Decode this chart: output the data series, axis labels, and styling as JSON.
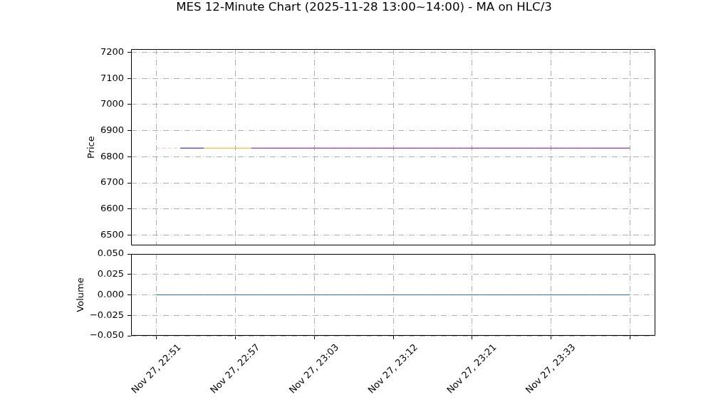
{
  "chart_data": [
    {
      "type": "line",
      "title": "MES 12-Minute Chart (2025-11-28 13:00~14:00) - MA on HLC/3",
      "ylabel": "Price",
      "categories": [
        null,
        null,
        null,
        null,
        null,
        null,
        null,
        null,
        null,
        null,
        null,
        null,
        null,
        null,
        null,
        null,
        null,
        null,
        null,
        null,
        null,
        null,
        null,
        null,
        null,
        null,
        null,
        null,
        null,
        null,
        null,
        null,
        null,
        null,
        null,
        null,
        null,
        null,
        null,
        null,
        null,
        null,
        null,
        null,
        null,
        null,
        null,
        null,
        null,
        null,
        null,
        null,
        null,
        null,
        null,
        null,
        null,
        null,
        null,
        null,
        null
      ],
      "series": [
        {
          "color": "#ffb6c1",
          "line_style": "dashed",
          "values": [
            6833,
            6833,
            6833,
            6833,
            null,
            null,
            null,
            null,
            null,
            null,
            null,
            null,
            null,
            null,
            null,
            null,
            null,
            null,
            null,
            null,
            null,
            null,
            null,
            null,
            null,
            null,
            null,
            null,
            null,
            null,
            null,
            null,
            null,
            null,
            null,
            null,
            null,
            null,
            null,
            null,
            null,
            null,
            null,
            null,
            null,
            null,
            null,
            null,
            null,
            null,
            null,
            null,
            null,
            null,
            null,
            null,
            null,
            null,
            null,
            null,
            null
          ]
        },
        {
          "color": "#0000ff",
          "values": [
            null,
            null,
            null,
            6833,
            6833,
            6833,
            6833,
            null,
            null,
            null,
            null,
            null,
            null,
            null,
            null,
            null,
            null,
            null,
            null,
            null,
            null,
            null,
            null,
            null,
            null,
            null,
            null,
            null,
            null,
            null,
            null,
            null,
            null,
            null,
            null,
            null,
            null,
            null,
            null,
            null,
            null,
            null,
            null,
            null,
            null,
            null,
            null,
            null,
            null,
            null,
            null,
            null,
            null,
            null,
            null,
            null,
            null,
            null,
            null,
            null,
            null
          ]
        },
        {
          "color": "#ffa500",
          "values": [
            null,
            null,
            null,
            null,
            null,
            null,
            6833,
            6833,
            6833,
            6833,
            6833,
            6833,
            6833,
            null,
            null,
            null,
            null,
            null,
            null,
            null,
            null,
            null,
            null,
            null,
            null,
            null,
            null,
            null,
            null,
            null,
            null,
            null,
            null,
            null,
            null,
            null,
            null,
            null,
            null,
            null,
            null,
            null,
            null,
            null,
            null,
            null,
            null,
            null,
            null,
            null,
            null,
            null,
            null,
            null,
            null,
            null,
            null,
            null,
            null,
            null,
            null
          ]
        },
        {
          "color": "#800080",
          "values": [
            null,
            null,
            null,
            null,
            null,
            null,
            null,
            null,
            null,
            null,
            null,
            null,
            6833,
            6833,
            6833,
            6833,
            6833,
            6833,
            6833,
            6833,
            6833,
            6833,
            6833,
            6833,
            6833,
            6833,
            6833,
            6833,
            6833,
            6833,
            6833,
            6833,
            6833,
            6833,
            6833,
            6833,
            6833,
            6833,
            6833,
            6833,
            6833,
            6833,
            6833,
            6833,
            6833,
            6833,
            6833,
            6833,
            6833,
            6833,
            6833,
            6833,
            6833,
            6833,
            6833,
            6833,
            6833,
            6833,
            6833,
            6833,
            6833
          ]
        }
      ],
      "ylim": [
        6460,
        7212
      ],
      "yticks": [
        6500,
        6600,
        6700,
        6800,
        6900,
        7000,
        7100,
        7200
      ],
      "grid": true,
      "tick_labels": "y",
      "marker": "none",
      "line_style": "solid"
    },
    {
      "type": "line",
      "ylabel": "Volume",
      "categories": [
        "Nov 27, 22:51",
        null,
        null,
        null,
        null,
        null,
        null,
        null,
        null,
        null,
        "Nov 27, 22:57",
        null,
        null,
        null,
        null,
        null,
        null,
        null,
        null,
        null,
        "Nov 27, 23:03",
        null,
        null,
        null,
        null,
        null,
        null,
        null,
        null,
        null,
        "Nov 27, 23:12",
        null,
        null,
        null,
        null,
        null,
        null,
        null,
        null,
        null,
        "Nov 27, 23:21",
        null,
        null,
        null,
        null,
        null,
        null,
        null,
        null,
        null,
        "Nov 27, 23:33",
        null,
        null,
        null,
        null,
        null,
        null,
        null,
        null,
        null,
        null
      ],
      "series": [
        {
          "color": "#1f77b4",
          "values": [
            0,
            0,
            0,
            0,
            0,
            0,
            0,
            0,
            0,
            0,
            0,
            0,
            0,
            0,
            0,
            0,
            0,
            0,
            0,
            0,
            0,
            0,
            0,
            0,
            0,
            0,
            0,
            0,
            0,
            0,
            0,
            0,
            0,
            0,
            0,
            0,
            0,
            0,
            0,
            0,
            0,
            0,
            0,
            0,
            0,
            0,
            0,
            0,
            0,
            0,
            0,
            0,
            0,
            0,
            0,
            0,
            0,
            0,
            0,
            0,
            0
          ]
        }
      ],
      "ylim": [
        -0.05,
        0.05
      ],
      "yticks": [
        {
          "value": -0.05,
          "label": "−0.050"
        },
        {
          "value": -0.025,
          "label": "−0.025"
        },
        {
          "value": 0,
          "label": "0.000"
        },
        {
          "value": 0.025,
          "label": "0.025"
        },
        {
          "value": 0.05,
          "label": "0.050"
        }
      ],
      "grid": true,
      "marker": "none",
      "line_style": "solid"
    }
  ]
}
